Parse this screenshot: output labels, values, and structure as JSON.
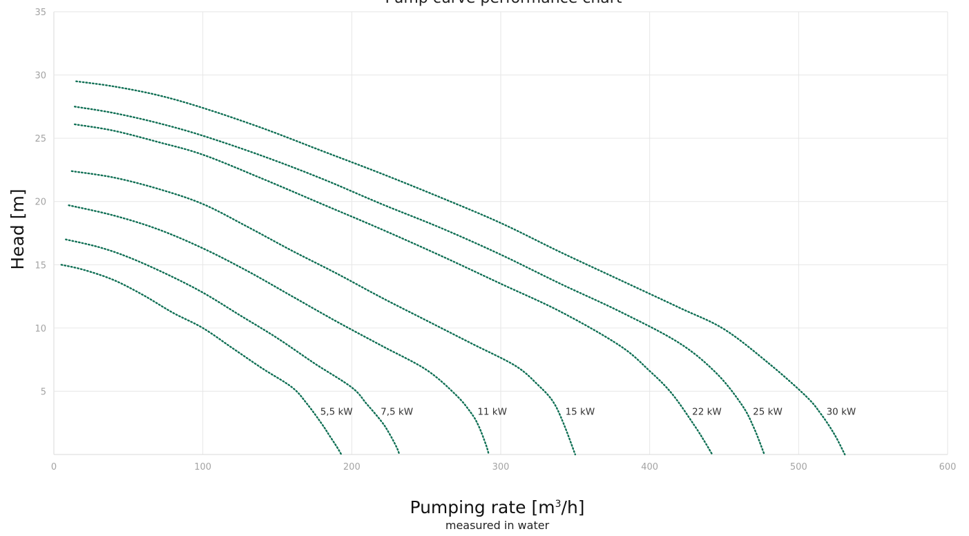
{
  "chart_data": {
    "type": "line",
    "title": "Pump curve performance chart",
    "xlabel_main": "Pumping rate [m",
    "xlabel_sup": "3",
    "xlabel_end": "/h]",
    "xlabel_sub": "measured in water",
    "ylabel": "Head [m]",
    "xlim": [
      0,
      600
    ],
    "ylim": [
      0,
      35
    ],
    "x_ticks": [
      0,
      100,
      200,
      300,
      400,
      500,
      600
    ],
    "y_ticks": [
      5,
      10,
      15,
      20,
      25,
      30,
      35
    ],
    "grid": true,
    "line_style": "dotted",
    "color": "#0f6f54",
    "series": [
      {
        "name": "5,5 kW",
        "x": [
          5,
          20,
          40,
          60,
          80,
          100,
          120,
          140,
          160,
          170,
          180,
          185,
          190,
          193
        ],
        "y": [
          15.0,
          14.6,
          13.8,
          12.6,
          11.2,
          10.0,
          8.4,
          6.8,
          5.3,
          4.0,
          2.4,
          1.5,
          0.6,
          0.0
        ]
      },
      {
        "name": "7,5 kW",
        "x": [
          8,
          30,
          50,
          75,
          100,
          125,
          150,
          175,
          200,
          210,
          220,
          225,
          230,
          232
        ],
        "y": [
          17.0,
          16.4,
          15.6,
          14.3,
          12.8,
          11.0,
          9.2,
          7.2,
          5.3,
          4.0,
          2.6,
          1.7,
          0.6,
          0.0
        ]
      },
      {
        "name": "11 kW",
        "x": [
          10,
          40,
          70,
          100,
          130,
          160,
          190,
          220,
          250,
          270,
          280,
          285,
          290,
          292
        ],
        "y": [
          19.7,
          18.9,
          17.8,
          16.3,
          14.5,
          12.5,
          10.5,
          8.6,
          6.7,
          4.7,
          3.3,
          2.3,
          0.8,
          0.0
        ]
      },
      {
        "name": "15 kW",
        "x": [
          12,
          40,
          70,
          100,
          130,
          160,
          190,
          220,
          250,
          280,
          310,
          325,
          335,
          342,
          350
        ],
        "y": [
          22.4,
          21.9,
          21.0,
          19.8,
          18.0,
          16.1,
          14.3,
          12.4,
          10.6,
          8.8,
          7.0,
          5.5,
          4.2,
          2.5,
          0.0
        ]
      },
      {
        "name": "22 kW",
        "x": [
          14,
          40,
          70,
          100,
          140,
          180,
          220,
          260,
          300,
          340,
          380,
          400,
          415,
          430,
          437,
          442
        ],
        "y": [
          26.1,
          25.6,
          24.7,
          23.7,
          21.8,
          19.8,
          17.8,
          15.7,
          13.5,
          11.3,
          8.6,
          6.6,
          4.8,
          2.3,
          1.0,
          0.0
        ]
      },
      {
        "name": "25 kW",
        "x": [
          14,
          40,
          70,
          100,
          140,
          180,
          220,
          260,
          300,
          340,
          380,
          420,
          445,
          462,
          470,
          477
        ],
        "y": [
          27.5,
          27.0,
          26.2,
          25.2,
          23.6,
          21.8,
          19.8,
          17.9,
          15.8,
          13.5,
          11.3,
          8.8,
          6.4,
          3.9,
          2.1,
          0.0
        ]
      },
      {
        "name": "30 kW",
        "x": [
          15,
          40,
          70,
          100,
          140,
          180,
          220,
          260,
          300,
          340,
          380,
          420,
          450,
          480,
          505,
          515,
          524,
          531
        ],
        "y": [
          29.5,
          29.1,
          28.4,
          27.4,
          25.8,
          24.0,
          22.2,
          20.3,
          18.3,
          16.0,
          13.8,
          11.6,
          9.9,
          7.2,
          4.6,
          3.2,
          1.6,
          0.0
        ]
      }
    ]
  }
}
